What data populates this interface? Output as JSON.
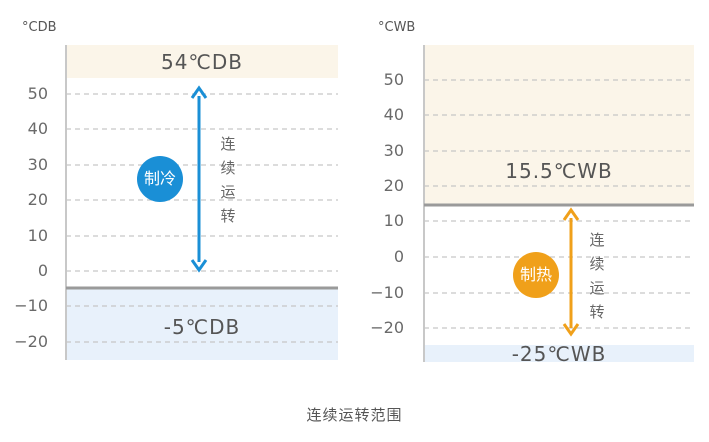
{
  "left_panel": {
    "unit_label": "°CDB",
    "ticks": [
      "50",
      "40",
      "30",
      "20",
      "10",
      "0",
      "−10",
      "−20"
    ],
    "upper_limit_label": "54℃DB",
    "lower_limit_label": "-5℃DB",
    "mode_label": "制冷",
    "vertical_text": [
      "连",
      "续",
      "运",
      "转"
    ],
    "colors": {
      "accent": "#1a8fd6",
      "top_band": "#fbf5e9",
      "bottom_band": "#e8f1fb"
    }
  },
  "right_panel": {
    "unit_label": "°CWB",
    "ticks": [
      "50",
      "40",
      "30",
      "20",
      "10",
      "0",
      "−10",
      "−20"
    ],
    "upper_limit_label": "15.5℃WB",
    "lower_limit_label": "-25℃WB",
    "mode_label": "制热",
    "vertical_text": [
      "连",
      "续",
      "运",
      "转"
    ],
    "colors": {
      "accent": "#f0a01a",
      "top_band": "#fbf5e9",
      "bottom_band": "#e8f1fb"
    }
  },
  "caption": "连续运转范围"
}
